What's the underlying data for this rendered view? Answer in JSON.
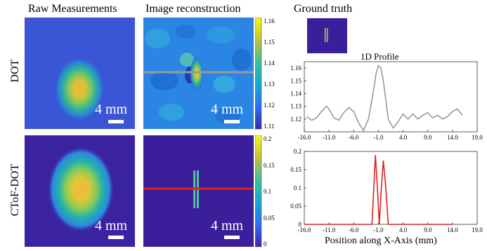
{
  "headers": {
    "raw": "Raw Measurements",
    "recon": "Image reconstruction",
    "gt": "Ground truth"
  },
  "rows": {
    "dot": "DOT",
    "ctof": "CToF-DOT"
  },
  "scale_label": "4 mm",
  "colors": {
    "bg_dark": "#3b1f9a",
    "profile_top": "#999999",
    "profile_bottom": "#e02020",
    "recon_line_top": "#9a9a9a",
    "recon_line_bottom": "#e02020"
  },
  "colorbar_top": {
    "ticks": [
      "1.16",
      "1.15",
      "1.14",
      "1.13",
      "1.12",
      "1.11"
    ]
  },
  "colorbar_bottom": {
    "ticks": [
      "0.2",
      "0.15",
      "0.1",
      "0.05",
      "0"
    ]
  },
  "chart_data": [
    {
      "type": "line",
      "title": "1D Profile",
      "xlabel": "",
      "ylabel": "",
      "xlim": [
        -16,
        19
      ],
      "ylim": [
        1.11,
        1.165
      ],
      "xticks": [
        "-16.0",
        "-11.0",
        "-6.0",
        "-1.0",
        "4.0",
        "9.0",
        "14.0",
        "19.0"
      ],
      "yticks": [
        "1.16",
        "1.15",
        "1.14",
        "1.13",
        "1.12"
      ],
      "series": [
        {
          "color": "#999999",
          "x": [
            -15.5,
            -14.5,
            -13.5,
            -12.5,
            -11.5,
            -11.0,
            -10.0,
            -9.0,
            -8.0,
            -7.0,
            -6.0,
            -5.0,
            -4.0,
            -3.0,
            -2.0,
            -1.5,
            -1.0,
            -0.5,
            0.0,
            0.5,
            1.0,
            2.0,
            3.0,
            4.0,
            5.0,
            6.0,
            7.0,
            8.0,
            9.0,
            10.0,
            11.0,
            12.0,
            13.0,
            14.0,
            15.0,
            16.0
          ],
          "y": [
            1.122,
            1.119,
            1.121,
            1.126,
            1.13,
            1.128,
            1.121,
            1.119,
            1.125,
            1.129,
            1.126,
            1.117,
            1.111,
            1.12,
            1.142,
            1.155,
            1.162,
            1.16,
            1.15,
            1.135,
            1.12,
            1.113,
            1.118,
            1.124,
            1.12,
            1.124,
            1.12,
            1.123,
            1.125,
            1.121,
            1.123,
            1.12,
            1.122,
            1.126,
            1.128,
            1.123
          ]
        }
      ]
    },
    {
      "type": "line",
      "title": "",
      "xlabel": "Position along X-Axis (mm)",
      "ylabel": "",
      "xlim": [
        -16,
        19
      ],
      "ylim": [
        0,
        0.2
      ],
      "xticks": [
        "-16.0",
        "-11.0",
        "-6.0",
        "-1.0",
        "4.0",
        "9.0",
        "14.0",
        "19.0"
      ],
      "yticks": [
        "0.2",
        "0.15",
        "0.1",
        "0.05",
        "0"
      ],
      "series": [
        {
          "color": "#e02020",
          "x": [
            -16.0,
            -3.0,
            -2.3,
            -1.6,
            -1.2,
            -0.8,
            -0.4,
            0.0,
            0.5,
            1.0,
            14.0
          ],
          "y": [
            0,
            0,
            0,
            0.19,
            0.1,
            0.0,
            0.1,
            0.175,
            0.1,
            0,
            0
          ]
        }
      ]
    }
  ]
}
